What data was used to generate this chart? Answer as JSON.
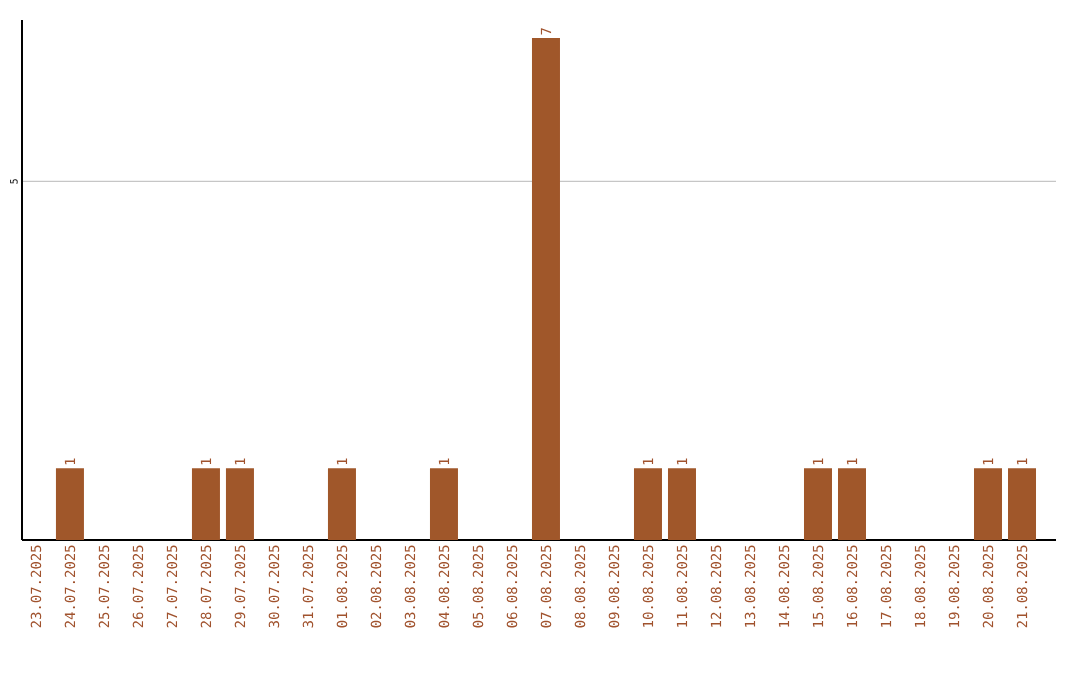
{
  "chart_data": {
    "type": "bar",
    "categories": [
      "23.07.2025",
      "24.07.2025",
      "25.07.2025",
      "26.07.2025",
      "27.07.2025",
      "28.07.2025",
      "29.07.2025",
      "30.07.2025",
      "31.07.2025",
      "01.08.2025",
      "02.08.2025",
      "03.08.2025",
      "04.08.2025",
      "05.08.2025",
      "06.08.2025",
      "07.08.2025",
      "08.08.2025",
      "09.08.2025",
      "10.08.2025",
      "11.08.2025",
      "12.08.2025",
      "13.08.2025",
      "14.08.2025",
      "15.08.2025",
      "16.08.2025",
      "17.08.2025",
      "18.08.2025",
      "19.08.2025",
      "20.08.2025",
      "21.08.2025"
    ],
    "values": [
      0,
      1,
      0,
      0,
      0,
      1,
      1,
      0,
      0,
      1,
      0,
      0,
      1,
      0,
      0,
      7,
      0,
      0,
      1,
      1,
      0,
      0,
      0,
      1,
      1,
      0,
      0,
      0,
      1,
      1
    ],
    "value_labels": [
      null,
      "1",
      null,
      null,
      null,
      "1",
      "1",
      null,
      null,
      "1",
      null,
      null,
      "1",
      null,
      null,
      "7",
      null,
      null,
      "1",
      "1",
      null,
      null,
      null,
      "1",
      "1",
      null,
      null,
      null,
      "1",
      "1"
    ],
    "color": "#a0572a",
    "ylim": [
      0,
      7.25
    ],
    "yticks": [
      5
    ],
    "grid": "y"
  }
}
